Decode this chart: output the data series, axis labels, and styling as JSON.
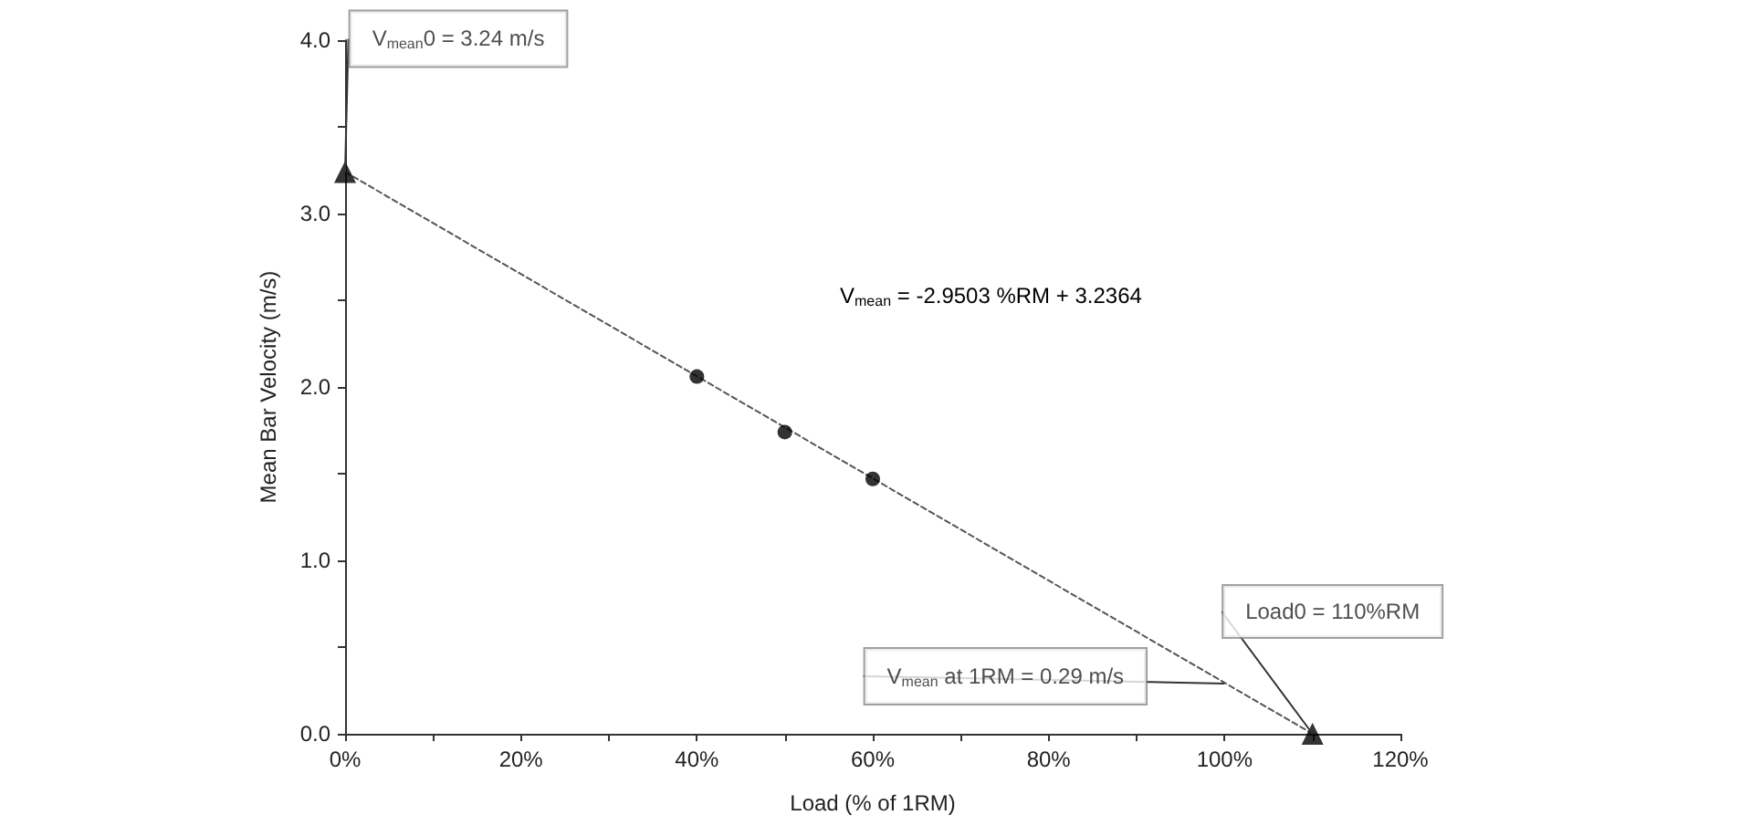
{
  "chart_data": {
    "type": "scatter",
    "xlabel": "Load (% of 1RM)",
    "ylabel": "Mean Bar Velocity (m/s)",
    "xlim": [
      0,
      120
    ],
    "ylim": [
      0,
      4
    ],
    "xticks": [
      {
        "value": 0,
        "label": "0%"
      },
      {
        "value": 10,
        "label": null
      },
      {
        "value": 20,
        "label": "20%"
      },
      {
        "value": 30,
        "label": null
      },
      {
        "value": 40,
        "label": "40%"
      },
      {
        "value": 50,
        "label": null
      },
      {
        "value": 60,
        "label": "60%"
      },
      {
        "value": 70,
        "label": null
      },
      {
        "value": 80,
        "label": "80%"
      },
      {
        "value": 90,
        "label": null
      },
      {
        "value": 100,
        "label": "100%"
      },
      {
        "value": 110,
        "label": null
      },
      {
        "value": 120,
        "label": "120%"
      }
    ],
    "yticks": [
      {
        "value": 0,
        "label": "0.0"
      },
      {
        "value": 0.5,
        "label": null
      },
      {
        "value": 1,
        "label": "1.0"
      },
      {
        "value": 1.5,
        "label": null
      },
      {
        "value": 2,
        "label": "2.0"
      },
      {
        "value": 2.5,
        "label": null
      },
      {
        "value": 3,
        "label": "3.0"
      },
      {
        "value": 3.5,
        "label": null
      },
      {
        "value": 4,
        "label": "4.0"
      }
    ],
    "series": [
      {
        "type": "line",
        "x": [
          0,
          110
        ],
        "values": [
          3.24,
          0
        ],
        "color": "#555555",
        "line_style": "dashed",
        "marker": "none"
      },
      {
        "x": [
          40,
          50,
          60
        ],
        "values": [
          2.06,
          1.74,
          1.47
        ],
        "color": "#000000",
        "marker": "circle"
      },
      {
        "x": [
          0,
          110
        ],
        "values": [
          3.24,
          0
        ],
        "color": "#000000",
        "marker": "triangle"
      }
    ],
    "annotations": [
      {
        "text": "V$_{mean}$0 = 3.24 m/s",
        "x": 0,
        "y": 3.24
      },
      "V$_{mean}$ = -2.9503 %RM + 3.2364",
      {
        "text": "Load0 = 110%RM",
        "x": 110,
        "y": 0
      },
      {
        "text": "V$_{mean}$ at 1RM = 0.29 m/s",
        "x": 100,
        "y": 0.29
      }
    ]
  }
}
